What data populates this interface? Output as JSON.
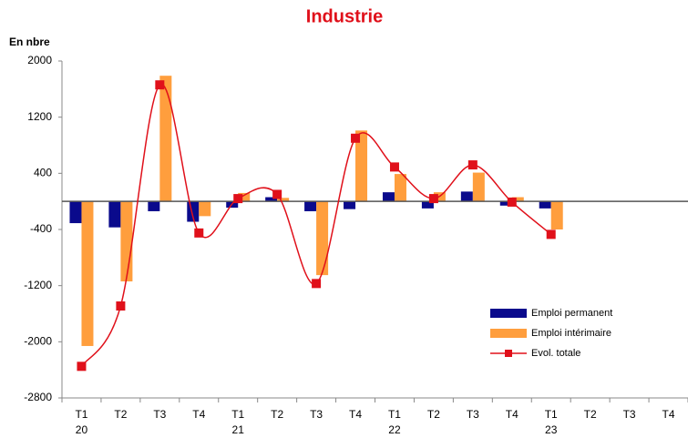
{
  "chart_data": {
    "type": "bar-line",
    "title": "Industrie",
    "y_axis_label": "En nbre",
    "categories": [
      "T1",
      "T2",
      "T3",
      "T4",
      "T1",
      "T2",
      "T3",
      "T4",
      "T1",
      "T2",
      "T3",
      "T4",
      "T1",
      "T2",
      "T3",
      "T4"
    ],
    "years": [
      "20",
      null,
      null,
      null,
      "21",
      null,
      null,
      null,
      "22",
      null,
      null,
      null,
      "23",
      null,
      null,
      null
    ],
    "series": [
      {
        "name": "Emploi permanent",
        "type": "bar",
        "color": "#0a0a8c",
        "values": [
          -310,
          -370,
          -140,
          -290,
          -90,
          60,
          -140,
          -110,
          130,
          -100,
          140,
          -60,
          -100,
          null,
          null,
          null
        ]
      },
      {
        "name": "Emploi intérimaire",
        "type": "bar",
        "color": "#ff9e3d",
        "values": [
          -2060,
          -1140,
          1790,
          -210,
          120,
          50,
          -1050,
          1010,
          390,
          130,
          410,
          60,
          -400,
          null,
          null,
          null
        ]
      },
      {
        "name": "Evol. totale",
        "type": "line",
        "color": "#e0101a",
        "values": [
          -2350,
          -1490,
          1660,
          -450,
          40,
          100,
          -1170,
          900,
          490,
          40,
          520,
          -10,
          -470,
          null,
          null,
          null
        ]
      }
    ],
    "ylim": [
      -2800,
      2000
    ],
    "yticks": [
      -2800,
      -2000,
      -1200,
      -400,
      400,
      1200,
      2000
    ],
    "grid": false
  }
}
